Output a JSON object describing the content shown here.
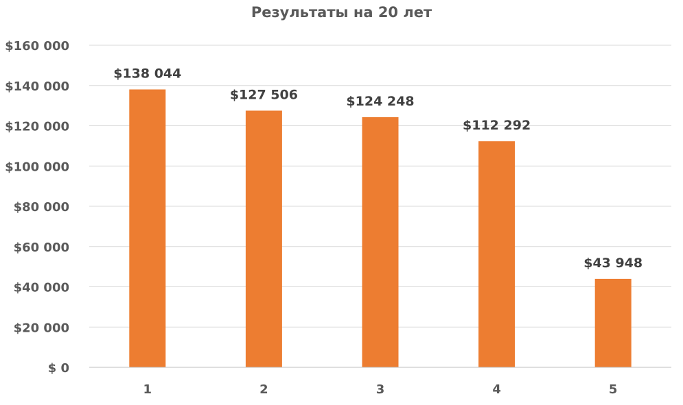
{
  "chart_data": {
    "type": "bar",
    "title": "Результаты на 20 лет",
    "categories": [
      "1",
      "2",
      "3",
      "4",
      "5"
    ],
    "values": [
      138044,
      127506,
      124248,
      112292,
      43948
    ],
    "data_labels": [
      "$138 044",
      "$127 506",
      "$124 248",
      "$112 292",
      "$43 948"
    ],
    "y_ticks": [
      0,
      20000,
      40000,
      60000,
      80000,
      100000,
      120000,
      140000,
      160000
    ],
    "y_tick_labels": [
      "$ 0",
      "$20 000",
      "$40 000",
      "$60 000",
      "$80 000",
      "$100 000",
      "$120 000",
      "$140 000",
      "$160 000"
    ],
    "ylim": [
      0,
      160000
    ],
    "xlabel": "",
    "ylabel": "",
    "grid": true,
    "legend": "none",
    "bar_color": "#ed7d31"
  }
}
